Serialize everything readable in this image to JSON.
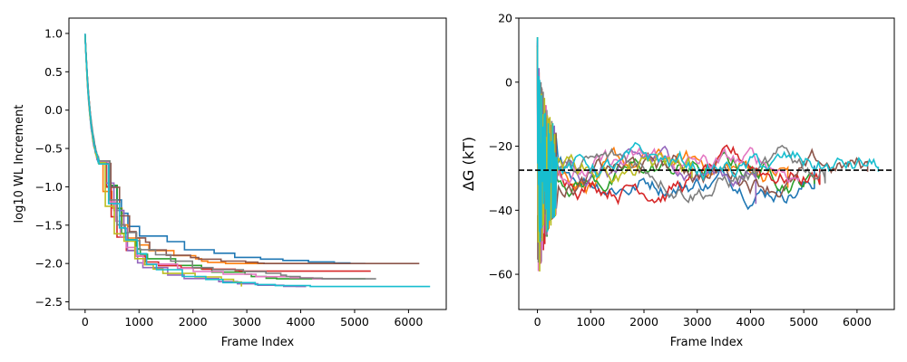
{
  "chart_data": [
    {
      "type": "line",
      "title": "",
      "xlabel": "Frame Index",
      "ylabel": "log10 WL Increment",
      "xlim": [
        -300,
        6700
      ],
      "ylim": [
        -2.6,
        1.2
      ],
      "xticks": [
        0,
        1000,
        2000,
        3000,
        4000,
        5000,
        6000
      ],
      "yticks": [
        1.0,
        0.5,
        0.0,
        -0.5,
        -1.0,
        -1.5,
        -2.0,
        -2.5
      ],
      "ytick_labels": [
        "1.0",
        "0.5",
        "0.0",
        "−0.5",
        "−1.0",
        "−1.5",
        "−2.0",
        "−2.5"
      ],
      "grid": false,
      "series": [
        {
          "color": "#1f77b4",
          "end_x": 5200,
          "end_y": -2.0
        },
        {
          "color": "#ff7f0e",
          "end_x": 4700,
          "end_y": -2.0
        },
        {
          "color": "#2ca02c",
          "end_x": 5200,
          "end_y": -2.2
        },
        {
          "color": "#d62728",
          "end_x": 5300,
          "end_y": -2.1
        },
        {
          "color": "#9467bd",
          "end_x": 4100,
          "end_y": -2.3
        },
        {
          "color": "#8c564b",
          "end_x": 6200,
          "end_y": -2.0
        },
        {
          "color": "#e377c2",
          "end_x": 4900,
          "end_y": -2.2
        },
        {
          "color": "#7f7f7f",
          "end_x": 5400,
          "end_y": -2.2
        },
        {
          "color": "#bcbd22",
          "end_x": 2900,
          "end_y": -2.3
        },
        {
          "color": "#17becf",
          "end_x": 6400,
          "end_y": -2.3
        }
      ]
    },
    {
      "type": "line",
      "title": "",
      "xlabel": "Frame Index",
      "ylabel": "ΔG (kT)",
      "xlim": [
        -350,
        6700
      ],
      "ylim": [
        -71,
        20
      ],
      "xticks": [
        0,
        1000,
        2000,
        3000,
        4000,
        5000,
        6000
      ],
      "yticks": [
        20,
        0,
        -20,
        -40,
        -60
      ],
      "ytick_labels": [
        "20",
        "0",
        "−20",
        "−40",
        "−60"
      ],
      "reference_line": -27.5,
      "grid": false,
      "series": [
        {
          "color": "#1f77b4",
          "end_x": 5200,
          "end_y": -26
        },
        {
          "color": "#ff7f0e",
          "end_x": 4700,
          "end_y": -33
        },
        {
          "color": "#2ca02c",
          "end_x": 5200,
          "end_y": -29
        },
        {
          "color": "#d62728",
          "end_x": 5300,
          "end_y": -27
        },
        {
          "color": "#9467bd",
          "end_x": 4100,
          "end_y": -38
        },
        {
          "color": "#8c564b",
          "end_x": 6200,
          "end_y": -28
        },
        {
          "color": "#e377c2",
          "end_x": 4900,
          "end_y": -31
        },
        {
          "color": "#7f7f7f",
          "end_x": 5400,
          "end_y": -27
        },
        {
          "color": "#bcbd22",
          "end_x": 2900,
          "end_y": -30
        },
        {
          "color": "#17becf",
          "end_x": 6400,
          "end_y": -28
        }
      ]
    }
  ]
}
